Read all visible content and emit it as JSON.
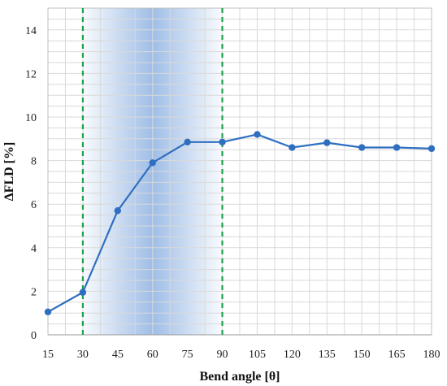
{
  "chart_data": {
    "type": "line",
    "title": "",
    "xlabel": "Bend angle [θ]",
    "ylabel": "ΔFLD [%]",
    "x": [
      15,
      30,
      45,
      60,
      75,
      90,
      105,
      120,
      135,
      150,
      165,
      180
    ],
    "x_tick_labels": [
      "15",
      "30",
      "45",
      "60",
      "75",
      "90",
      "105",
      "120",
      "135",
      "150",
      "165",
      "180"
    ],
    "y_ticks": [
      0,
      2,
      4,
      6,
      8,
      10,
      12,
      14
    ],
    "y_tick_labels": [
      "0",
      "2",
      "4",
      "6",
      "8",
      "10",
      "12",
      "14"
    ],
    "ylim": [
      0,
      15
    ],
    "xlim": [
      15,
      180
    ],
    "series": [
      {
        "values": [
          1.05,
          1.95,
          5.7,
          7.9,
          8.85,
          8.85,
          9.2,
          8.6,
          8.82,
          8.6,
          8.6,
          8.55
        ],
        "color": "#2f6fc0"
      }
    ],
    "reference_lines": {
      "orientation": "vertical",
      "x": [
        30,
        90
      ],
      "color": "#1aa34a",
      "style": "dashed"
    },
    "shaded_band": {
      "x_range": [
        30,
        90
      ],
      "peak_x": 60,
      "color": "#7fa8df"
    },
    "grid": true,
    "grid_minor_y_step": 0.5,
    "grid_color": "#d9d9d9",
    "legend": "none"
  }
}
